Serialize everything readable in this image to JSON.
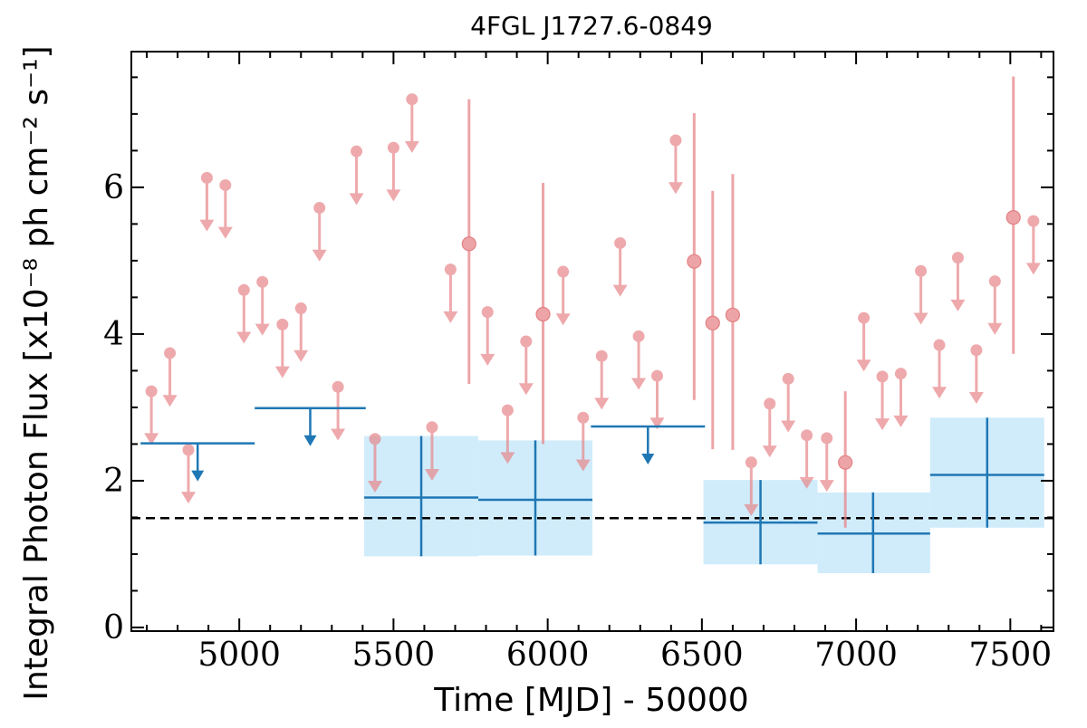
{
  "chart_data": {
    "type": "scatter",
    "title": "4FGL J1727.6-0849",
    "xlabel": "Time [MJD] - 50000",
    "ylabel": "Integral Photon Flux [x10⁻⁸ ph cm⁻² s⁻¹]",
    "xlim": [
      4650,
      7640
    ],
    "ylim": [
      -0.05,
      7.85
    ],
    "x_ticks": [
      5000,
      5500,
      6000,
      6500,
      7000,
      7500
    ],
    "y_ticks": [
      0,
      2,
      4,
      6
    ],
    "grid": false,
    "reference_line": {
      "value": 1.49,
      "style": "dashed",
      "color": "#000000"
    },
    "series": [
      {
        "kind": "short_bins",
        "color": "#e8868a",
        "upper_limits": [
          {
            "x": 4715,
            "y": 3.22
          },
          {
            "x": 4775,
            "y": 3.74
          },
          {
            "x": 4835,
            "y": 2.42
          },
          {
            "x": 4895,
            "y": 6.13
          },
          {
            "x": 4955,
            "y": 6.03
          },
          {
            "x": 5015,
            "y": 4.6
          },
          {
            "x": 5075,
            "y": 4.71
          },
          {
            "x": 5140,
            "y": 4.13
          },
          {
            "x": 5200,
            "y": 4.35
          },
          {
            "x": 5260,
            "y": 5.72
          },
          {
            "x": 5320,
            "y": 3.28
          },
          {
            "x": 5380,
            "y": 6.49
          },
          {
            "x": 5440,
            "y": 2.57
          },
          {
            "x": 5500,
            "y": 6.54
          },
          {
            "x": 5560,
            "y": 7.2
          },
          {
            "x": 5625,
            "y": 2.73
          },
          {
            "x": 5685,
            "y": 4.88
          },
          {
            "x": 5805,
            "y": 4.3
          },
          {
            "x": 5870,
            "y": 2.96
          },
          {
            "x": 5930,
            "y": 3.9
          },
          {
            "x": 6050,
            "y": 4.85
          },
          {
            "x": 6115,
            "y": 2.86
          },
          {
            "x": 6175,
            "y": 3.7
          },
          {
            "x": 6235,
            "y": 5.24
          },
          {
            "x": 6295,
            "y": 3.97
          },
          {
            "x": 6355,
            "y": 3.43
          },
          {
            "x": 6415,
            "y": 6.64
          },
          {
            "x": 6660,
            "y": 2.25
          },
          {
            "x": 6720,
            "y": 3.05
          },
          {
            "x": 6780,
            "y": 3.39
          },
          {
            "x": 6840,
            "y": 2.62
          },
          {
            "x": 6905,
            "y": 2.58
          },
          {
            "x": 7025,
            "y": 4.22
          },
          {
            "x": 7085,
            "y": 3.42
          },
          {
            "x": 7145,
            "y": 3.46
          },
          {
            "x": 7210,
            "y": 4.86
          },
          {
            "x": 7270,
            "y": 3.85
          },
          {
            "x": 7330,
            "y": 5.04
          },
          {
            "x": 7390,
            "y": 3.78
          },
          {
            "x": 7450,
            "y": 4.72
          },
          {
            "x": 7575,
            "y": 5.54
          }
        ],
        "detections": [
          {
            "x": 5745,
            "y": 5.23,
            "y_low": 3.32,
            "y_high": 7.2
          },
          {
            "x": 5985,
            "y": 4.27,
            "y_low": 2.5,
            "y_high": 6.06
          },
          {
            "x": 6475,
            "y": 4.99,
            "y_low": 3.1,
            "y_high": 7.01
          },
          {
            "x": 6535,
            "y": 4.15,
            "y_low": 2.43,
            "y_high": 5.95
          },
          {
            "x": 6600,
            "y": 4.26,
            "y_low": 2.42,
            "y_high": 6.18
          },
          {
            "x": 6965,
            "y": 2.25,
            "y_low": 1.36,
            "y_high": 3.22
          },
          {
            "x": 7510,
            "y": 5.59,
            "y_low": 3.73,
            "y_high": 7.51
          }
        ]
      },
      {
        "kind": "long_bins",
        "color": "#1f77b4",
        "band_color": "#d0ecfb",
        "upper_limits": [
          {
            "x_start": 4680,
            "x_end": 5050,
            "y": 2.51
          },
          {
            "x_start": 5050,
            "x_end": 5410,
            "y": 2.99
          },
          {
            "x_start": 6140,
            "x_end": 6510,
            "y": 2.74
          }
        ],
        "detections": [
          {
            "x_start": 5405,
            "x_end": 5775,
            "x": 5590,
            "y": 1.77,
            "y_low": 0.97,
            "y_high": 2.61
          },
          {
            "x_start": 5775,
            "x_end": 6145,
            "x": 5960,
            "y": 1.74,
            "y_low": 0.98,
            "y_high": 2.55
          },
          {
            "x_start": 6505,
            "x_end": 6875,
            "x": 6690,
            "y": 1.43,
            "y_low": 0.86,
            "y_high": 2.01
          },
          {
            "x_start": 6875,
            "x_end": 7240,
            "x": 7055,
            "y": 1.28,
            "y_low": 0.74,
            "y_high": 1.84
          },
          {
            "x_start": 7240,
            "x_end": 7610,
            "x": 7425,
            "y": 2.08,
            "y_low": 1.36,
            "y_high": 2.86
          }
        ]
      }
    ]
  }
}
